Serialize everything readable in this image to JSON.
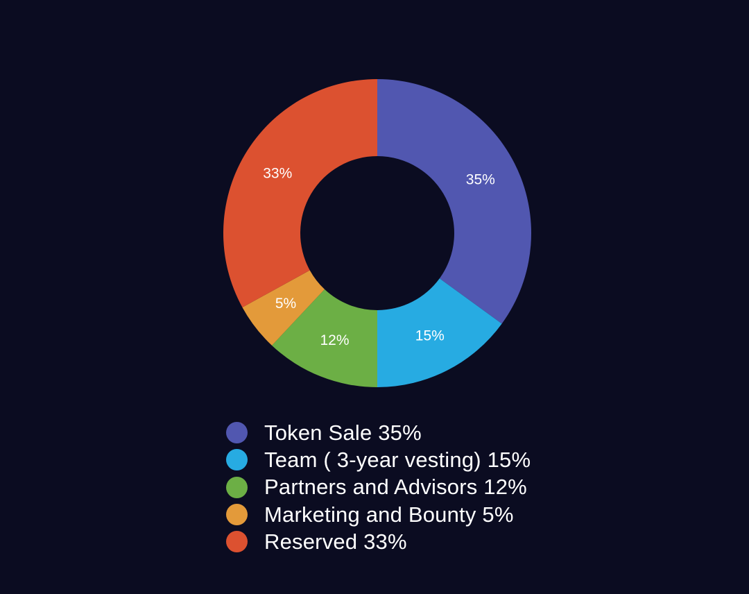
{
  "chart_data": {
    "type": "pie",
    "donut": true,
    "start": "top, clockwise",
    "slices": [
      {
        "label": "Token Sale 35%",
        "value": 35,
        "data_label": "35%",
        "color": "#5157b0"
      },
      {
        "label": "Team ( 3-year vesting) 15%",
        "value": 15,
        "data_label": "15%",
        "color": "#27abe2"
      },
      {
        "label": "Partners and Advisors 12%",
        "value": 12,
        "data_label": "12%",
        "color": "#6caf45"
      },
      {
        "label": "Marketing and Bounty 5%",
        "value": 5,
        "data_label": "5%",
        "color": "#e39a3a"
      },
      {
        "label": "Reserved 33%",
        "value": 33,
        "data_label": "33%",
        "color": "#dc5130"
      }
    ],
    "legend_position": "bottom"
  },
  "colors": {
    "background": "#0b0c21",
    "text": "#ffffff"
  }
}
